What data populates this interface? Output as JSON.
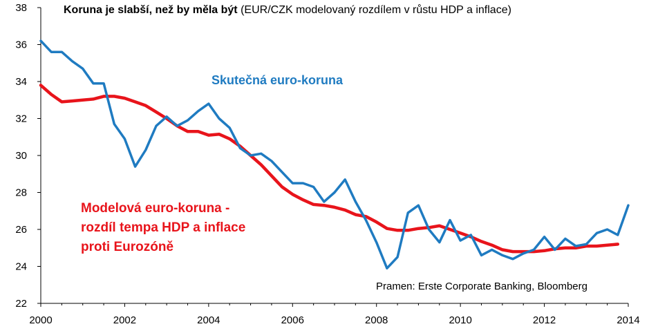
{
  "title": {
    "bold": "Koruna je slabší, než by měla být",
    "rest": "(EUR/CZK modelovaný rozdílem v růstu HDP a inflace)"
  },
  "source": "Pramen: Erste Corporate Banking, Bloomberg",
  "colors": {
    "actual": "#1f7bc1",
    "model": "#e8141b",
    "axis": "#000000"
  },
  "chart_data": {
    "type": "line",
    "xlim": [
      2000,
      2014
    ],
    "ylim": [
      22,
      38
    ],
    "x_ticks": [
      2000,
      2002,
      2004,
      2006,
      2008,
      2010,
      2012,
      2014
    ],
    "y_ticks": [
      22,
      24,
      26,
      28,
      30,
      32,
      34,
      36,
      38
    ],
    "grid": false,
    "series": [
      {
        "name": "Skutečná euro-koruna",
        "color": "#1f7bc1",
        "x": [
          2000.0,
          2000.25,
          2000.5,
          2000.75,
          2001.0,
          2001.25,
          2001.5,
          2001.75,
          2002.0,
          2002.25,
          2002.5,
          2002.75,
          2003.0,
          2003.25,
          2003.5,
          2003.75,
          2004.0,
          2004.25,
          2004.5,
          2004.75,
          2005.0,
          2005.25,
          2005.5,
          2005.75,
          2006.0,
          2006.25,
          2006.5,
          2006.75,
          2007.0,
          2007.25,
          2007.5,
          2007.75,
          2008.0,
          2008.25,
          2008.5,
          2008.75,
          2009.0,
          2009.25,
          2009.5,
          2009.75,
          2010.0,
          2010.25,
          2010.5,
          2010.75,
          2011.0,
          2011.25,
          2011.5,
          2011.75,
          2012.0,
          2012.25,
          2012.5,
          2012.75,
          2013.0,
          2013.25,
          2013.5,
          2013.75,
          2014.0
        ],
        "y": [
          36.2,
          35.6,
          35.6,
          35.1,
          34.7,
          33.9,
          33.9,
          31.7,
          30.9,
          29.4,
          30.3,
          31.6,
          32.1,
          31.6,
          31.9,
          32.4,
          32.8,
          32.0,
          31.5,
          30.4,
          30.0,
          30.1,
          29.7,
          29.1,
          28.5,
          28.5,
          28.3,
          27.5,
          28.0,
          28.7,
          27.5,
          26.5,
          25.3,
          23.9,
          24.5,
          26.9,
          27.3,
          26.0,
          25.3,
          26.5,
          25.4,
          25.7,
          24.6,
          24.9,
          24.6,
          24.4,
          24.7,
          24.9,
          25.6,
          24.9,
          25.5,
          25.1,
          25.2,
          25.8,
          26.0,
          25.7,
          27.3
        ]
      },
      {
        "name": "Modelová euro-koruna - rozdíl tempa HDP a inflace proti Eurozóně",
        "color": "#e8141b",
        "x": [
          2000.0,
          2000.25,
          2000.5,
          2000.75,
          2001.0,
          2001.25,
          2001.5,
          2001.75,
          2002.0,
          2002.25,
          2002.5,
          2002.75,
          2003.0,
          2003.25,
          2003.5,
          2003.75,
          2004.0,
          2004.25,
          2004.5,
          2004.75,
          2005.0,
          2005.25,
          2005.5,
          2005.75,
          2006.0,
          2006.25,
          2006.5,
          2006.75,
          2007.0,
          2007.25,
          2007.5,
          2007.75,
          2008.0,
          2008.25,
          2008.5,
          2008.75,
          2009.0,
          2009.25,
          2009.5,
          2009.75,
          2010.0,
          2010.25,
          2010.5,
          2010.75,
          2011.0,
          2011.25,
          2011.5,
          2011.75,
          2012.0,
          2012.25,
          2012.5,
          2012.75,
          2013.0,
          2013.25,
          2013.5,
          2013.75
        ],
        "y": [
          33.8,
          33.3,
          32.9,
          32.95,
          33.0,
          33.05,
          33.2,
          33.2,
          33.1,
          32.9,
          32.7,
          32.35,
          32.0,
          31.6,
          31.3,
          31.3,
          31.1,
          31.15,
          30.9,
          30.5,
          30.0,
          29.5,
          28.9,
          28.3,
          27.9,
          27.6,
          27.35,
          27.3,
          27.2,
          27.05,
          26.8,
          26.7,
          26.4,
          26.05,
          25.95,
          25.95,
          26.05,
          26.1,
          26.2,
          26.0,
          25.8,
          25.6,
          25.35,
          25.15,
          24.9,
          24.8,
          24.8,
          24.8,
          24.85,
          24.95,
          25.0,
          25.0,
          25.1,
          25.1,
          25.15,
          25.2
        ]
      }
    ],
    "labels": {
      "actual": "Skutečná euro-koruna",
      "model_lines": [
        "Modelová euro-koruna -",
        "rozdíl tempa HDP a inflace",
        "proti Eurozóně"
      ]
    }
  }
}
